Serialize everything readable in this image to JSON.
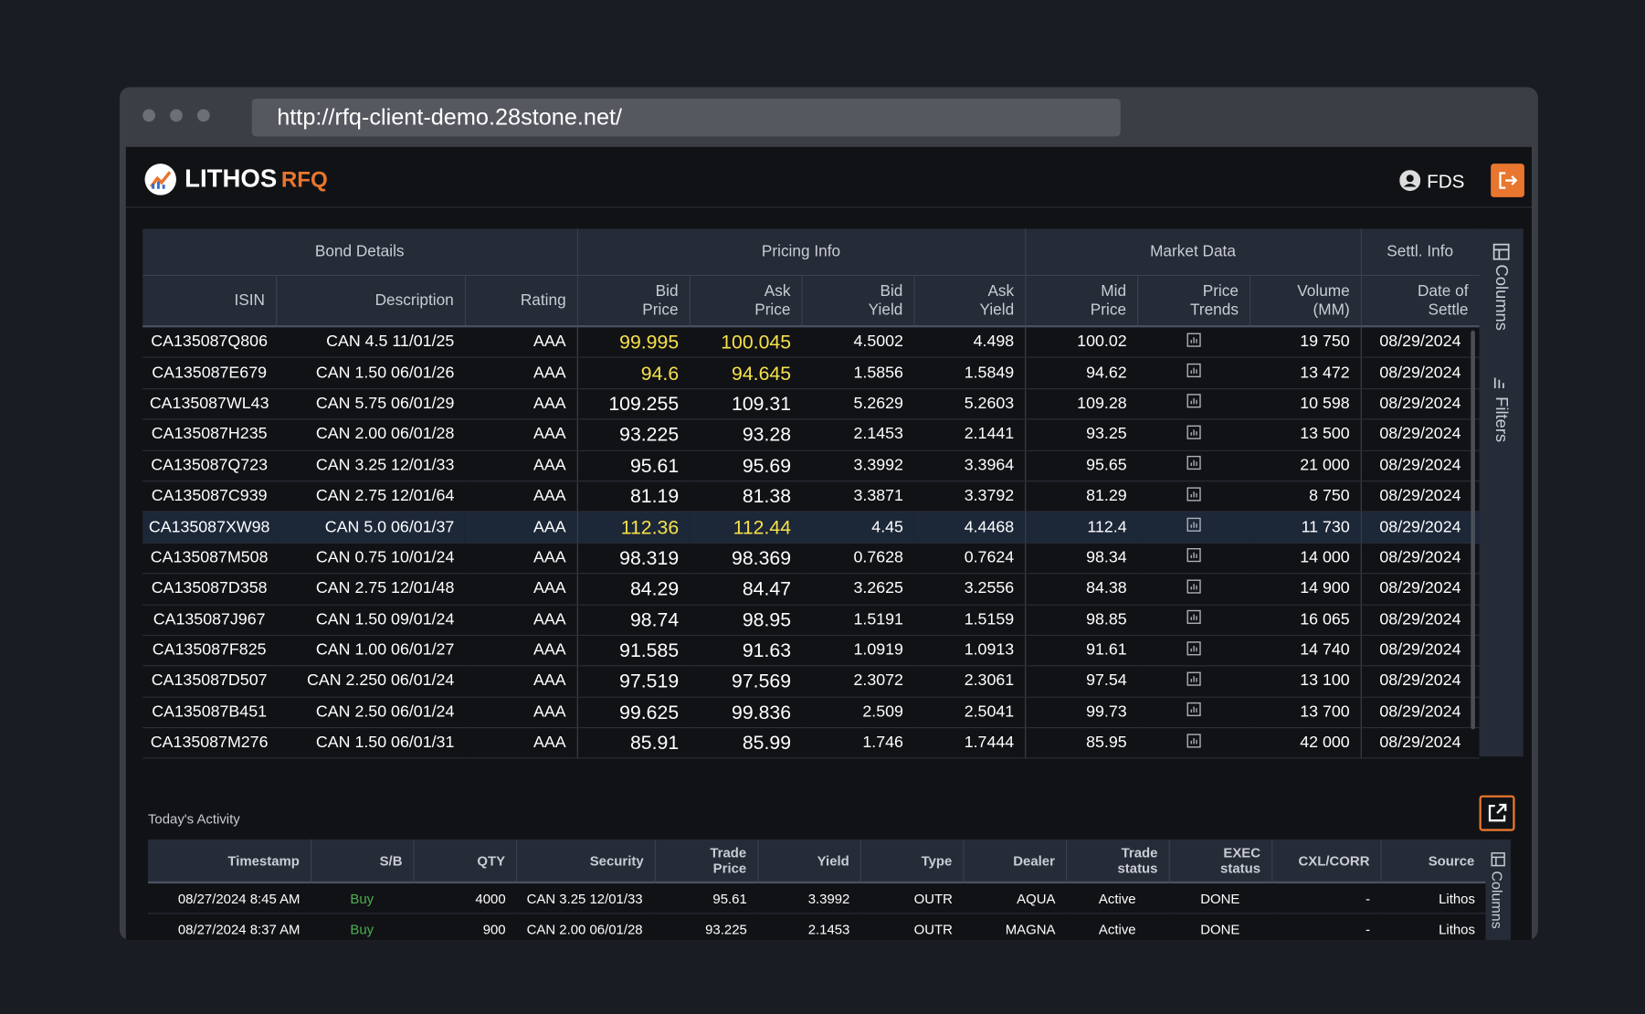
{
  "browser": {
    "url": "http://rfq-client-demo.28stone.net/"
  },
  "header": {
    "brand": "LITHOS",
    "product": "RFQ",
    "user": "FDS"
  },
  "table": {
    "groups": [
      "Bond Details",
      "Pricing Info",
      "Market Data",
      "Settl. Info"
    ],
    "columns": [
      "ISIN",
      "Description",
      "Rating",
      "Bid\nPrice",
      "Ask\nPrice",
      "Bid\nYield",
      "Ask\nYield",
      "Mid\nPrice",
      "Price\nTrends",
      "Volume\n(MM)",
      "Date of\nSettle"
    ],
    "rows": [
      [
        "CA135087Q806",
        "CAN 4.5 11/01/25",
        "AAA",
        "99.995",
        "100.045",
        "4.5002",
        "4.498",
        "100.02",
        null,
        "19 750",
        "08/29/2024"
      ],
      [
        "CA135087E679",
        "CAN 1.50 06/01/26",
        "AAA",
        "94.6",
        "94.645",
        "1.5856",
        "1.5849",
        "94.62",
        null,
        "13 472",
        "08/29/2024"
      ],
      [
        "CA135087WL43",
        "CAN 5.75 06/01/29",
        "AAA",
        "109.255",
        "109.31",
        "5.2629",
        "5.2603",
        "109.28",
        null,
        "10 598",
        "08/29/2024"
      ],
      [
        "CA135087H235",
        "CAN 2.00 06/01/28",
        "AAA",
        "93.225",
        "93.28",
        "2.1453",
        "2.1441",
        "93.25",
        null,
        "13 500",
        "08/29/2024"
      ],
      [
        "CA135087Q723",
        "CAN 3.25 12/01/33",
        "AAA",
        "95.61",
        "95.69",
        "3.3992",
        "3.3964",
        "95.65",
        null,
        "21 000",
        "08/29/2024"
      ],
      [
        "CA135087C939",
        "CAN 2.75 12/01/64",
        "AAA",
        "81.19",
        "81.38",
        "3.3871",
        "3.3792",
        "81.29",
        null,
        "8 750",
        "08/29/2024"
      ],
      [
        "CA135087XW98",
        "CAN 5.0 06/01/37",
        "AAA",
        "112.36",
        "112.44",
        "4.45",
        "4.4468",
        "112.4",
        null,
        "11 730",
        "08/29/2024"
      ],
      [
        "CA135087M508",
        "CAN 0.75 10/01/24",
        "AAA",
        "98.319",
        "98.369",
        "0.7628",
        "0.7624",
        "98.34",
        null,
        "14 000",
        "08/29/2024"
      ],
      [
        "CA135087D358",
        "CAN 2.75 12/01/48",
        "AAA",
        "84.29",
        "84.47",
        "3.2625",
        "3.2556",
        "84.38",
        null,
        "14 900",
        "08/29/2024"
      ],
      [
        "CA135087J967",
        "CAN 1.50 09/01/24",
        "AAA",
        "98.74",
        "98.95",
        "1.5191",
        "1.5159",
        "98.85",
        null,
        "16 065",
        "08/29/2024"
      ],
      [
        "CA135087F825",
        "CAN 1.00 06/01/27",
        "AAA",
        "91.585",
        "91.63",
        "1.0919",
        "1.0913",
        "91.61",
        null,
        "14 740",
        "08/29/2024"
      ],
      [
        "CA135087D507",
        "CAN 2.250 06/01/24",
        "AAA",
        "97.519",
        "97.569",
        "2.3072",
        "2.3061",
        "97.54",
        null,
        "13 100",
        "08/29/2024"
      ],
      [
        "CA135087B451",
        "CAN 2.50 06/01/24",
        "AAA",
        "99.625",
        "99.836",
        "2.509",
        "2.5041",
        "99.73",
        null,
        "13 700",
        "08/29/2024"
      ],
      [
        "CA135087M276",
        "CAN 1.50 06/01/31",
        "AAA",
        "85.91",
        "85.99",
        "1.746",
        "1.7444",
        "85.95",
        null,
        "42 000",
        "08/29/2024"
      ]
    ],
    "side_panel": [
      "Columns",
      "Filters"
    ]
  },
  "activity": {
    "title": "Today's Activity",
    "columns": [
      "Timestamp",
      "S/B",
      "QTY",
      "Security",
      "Trade\nPrice",
      "Yield",
      "Type",
      "Dealer",
      "Trade\nstatus",
      "EXEC\nstatus",
      "CXL/CORR",
      "Source"
    ],
    "rows": [
      [
        "08/27/2024 8:45 AM",
        "Buy",
        "4000",
        "CAN 3.25 12/01/33",
        "95.61",
        "3.3992",
        "OUTR",
        "AQUA",
        "Active",
        "DONE",
        "-",
        "Lithos"
      ],
      [
        "08/27/2024 8:37 AM",
        "Buy",
        "900",
        "CAN 2.00 06/01/28",
        "93.225",
        "2.1453",
        "OUTR",
        "MAGNA",
        "Active",
        "DONE",
        "-",
        "Lithos"
      ]
    ],
    "side_panel": "Columns"
  }
}
